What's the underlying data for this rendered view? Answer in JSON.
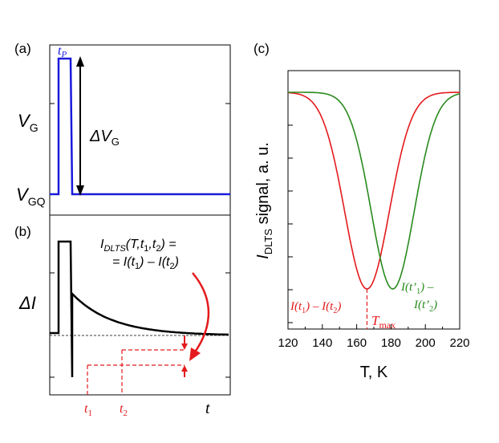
{
  "colors": {
    "blue": "#1a1adb",
    "red": "#e41a1c",
    "green": "#2a8a1e",
    "black": "#000000"
  },
  "panels": {
    "a": {
      "label": "(a)",
      "ylabel": "V",
      "ylabel_sub": "G",
      "yq_label": "V",
      "yq_sub": "GQ",
      "tp": "t",
      "tp_sub": "P",
      "dv": "ΔV",
      "dv_sub": "G"
    },
    "b": {
      "label": "(b)",
      "ylabel": "ΔI",
      "xlabel": "t",
      "formula_line1_a": "I",
      "formula_line1_sub": "DLTS",
      "formula_line1_b": "(T,t",
      "formula_line1_sub1": "1",
      "formula_line1_c": ",t",
      "formula_line1_sub2": "2",
      "formula_line1_d": ") =",
      "formula_line2_a": "= I(t",
      "formula_line2_sub1": "1",
      "formula_line2_b": ") – I(t",
      "formula_line2_sub2": "2",
      "formula_line2_c": ")",
      "t1": "t",
      "t1_sub": "1",
      "t2": "t",
      "t2_sub": "2"
    },
    "c": {
      "label": "(c)"
    }
  },
  "chart_data": {
    "type": "line",
    "title": "",
    "xlabel": "T, K",
    "ylabel": "I",
    "ylabel_sub": "DLTS",
    "ylabel_rest": " signal, a. u.",
    "xlim": [
      120,
      220
    ],
    "ylim": [
      -1.05,
      0.1
    ],
    "x_ticks": [
      120,
      140,
      160,
      180,
      200,
      220
    ],
    "y_ticks_count": 8,
    "series": [
      {
        "name": "I(t1) – I(t2)",
        "color": "red",
        "center": 166,
        "sigma": 13,
        "depth": 1.0
      },
      {
        "name": "I(t'1) – I(t'2)",
        "color": "green",
        "center": 181,
        "sigma": 12.5,
        "depth": 1.0
      }
    ],
    "annotations": {
      "red_label_a": "I(t",
      "red_label_s1": "1",
      "red_label_b": ") – I(t",
      "red_label_s2": "2",
      "red_label_c": ")",
      "green_label_l1a": "I(t’",
      "green_label_l1s": "1",
      "green_label_l1b": ") –",
      "green_label_l2a": "I(t’",
      "green_label_l2s": "2",
      "green_label_l2b": ")",
      "tmax": "T",
      "tmax_sub": "max",
      "tmax_value": 166
    }
  }
}
